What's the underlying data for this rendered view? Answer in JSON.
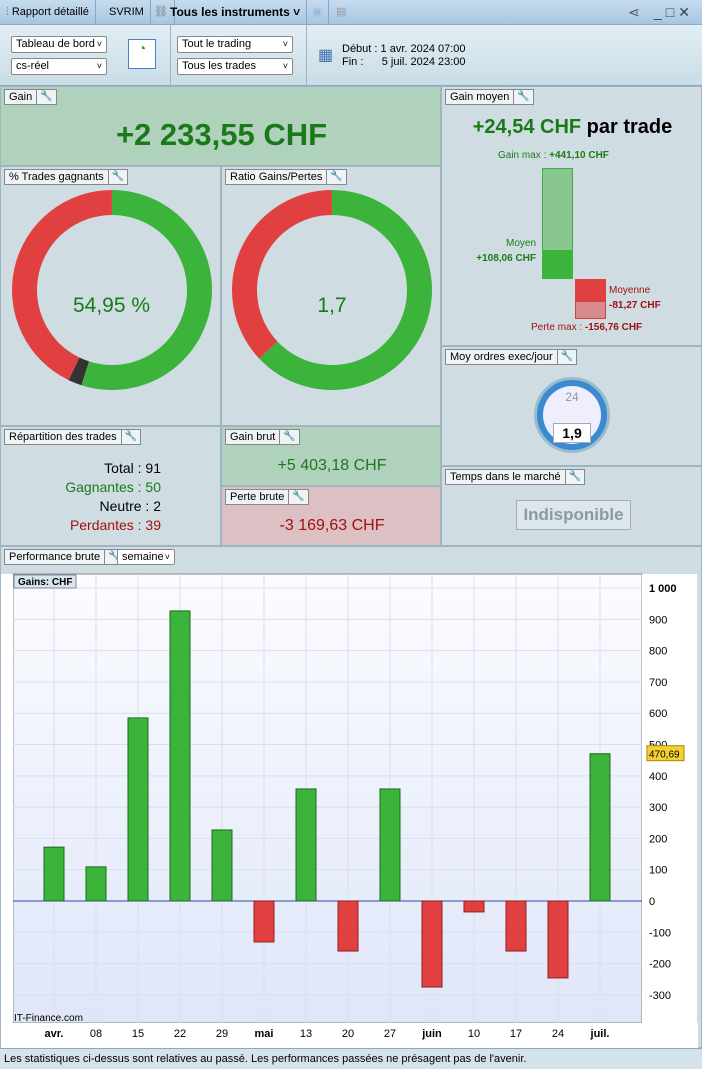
{
  "titlebar": {
    "report": "Rapport détaillé",
    "svrim": "SVRIM",
    "instruments": "Tous les instruments"
  },
  "toolbar": {
    "view": "Tableau de bord",
    "account": "cs-réel",
    "trading": "Tout le trading",
    "trades": "Tous les trades",
    "start": "Début : 1 avr. 2024 07:00",
    "end": "Fin :      5 juil. 2024 23:00"
  },
  "gain": {
    "title": "Gain",
    "value": "+2 233,55 CHF"
  },
  "gain_moyen": {
    "title": "Gain moyen",
    "value": "+24,54 CHF",
    "suffix": "par trade",
    "gain_max": "Gain max : ",
    "gain_max_value": "+441,10 CHF",
    "moyen_label": "Moyen",
    "moyen_value": "+108,06 CHF",
    "moyenne_label": "Moyenne",
    "moyenne_value": "-81,27 CHF",
    "perte_max": "Perte max : ",
    "perte_max_value": "-156,76 CHF"
  },
  "trades_gagnants": {
    "title": "% Trades gagnants",
    "value": "54,95 %",
    "win_pct": 54.95,
    "neutral_pct": 2.2
  },
  "ratio": {
    "title": "Ratio Gains/Pertes",
    "value": "1,7",
    "ratio": 1.7
  },
  "moy_ordres": {
    "title": "Moy ordres exec/jour",
    "value": "1,9",
    "clock": "24"
  },
  "temps": {
    "title": "Temps dans le marché",
    "value": "Indisponible"
  },
  "repartition": {
    "title": "Répartition des trades",
    "total": "Total : 91",
    "gagnantes": "Gagnantes : 50",
    "neutre": "Neutre : 2",
    "perdantes": "Perdantes : 39"
  },
  "gain_brut": {
    "title": "Gain brut",
    "value": "+5 403,18 CHF"
  },
  "perte_brute": {
    "title": "Perte brute",
    "value": "-3 169,63 CHF"
  },
  "performance": {
    "title": "Performance brute",
    "period": "semaine"
  },
  "chart_data": {
    "type": "bar",
    "legend": "Gains: CHF",
    "watermark": "IT-Finance.com",
    "last_value_label": "470,69",
    "categories": [
      "avr.",
      "08",
      "15",
      "22",
      "29",
      "mai",
      "13",
      "20",
      "27",
      "juin",
      "10",
      "17",
      "24",
      "juil."
    ],
    "values": [
      172,
      109,
      585,
      927,
      227,
      -131,
      358,
      -160,
      358,
      -275,
      -35,
      -160,
      -246,
      470.69
    ],
    "ylim": [
      -390,
      1045
    ],
    "yticks": [
      -300,
      -200,
      -100,
      0,
      100,
      200,
      300,
      400,
      500,
      600,
      700,
      800,
      900,
      1000
    ],
    "ytick_labels": [
      "-300",
      "-200",
      "-100",
      "0",
      "100",
      "200",
      "300",
      "400",
      "500",
      "600",
      "700",
      "800",
      "900",
      "1 000"
    ],
    "colors": {
      "positive": "#3cb43c",
      "negative": "#e04040"
    }
  },
  "footer": "Les statistiques ci-dessus sont relatives au passé. Les performances passées ne présagent pas de l'avenir."
}
